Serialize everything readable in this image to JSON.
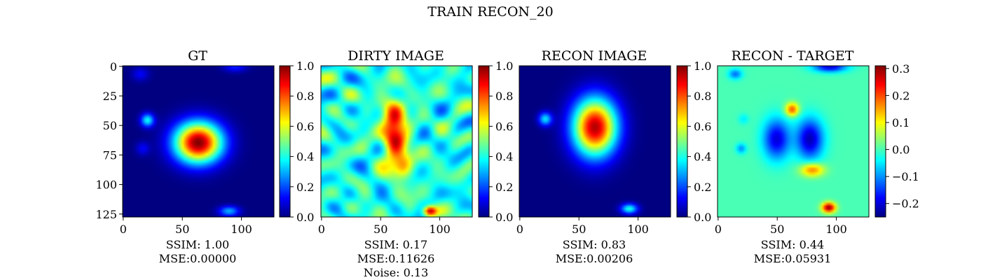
{
  "suptitle": "TRAIN RECON_20",
  "colormap": "jet",
  "chart_data": [
    {
      "type": "heatmap",
      "title": "GT",
      "image_size": [
        128,
        128
      ],
      "x_ticks": [
        0,
        50,
        100
      ],
      "y_ticks": [
        0,
        25,
        50,
        75,
        100,
        125
      ],
      "colorbar": {
        "range": [
          0.0,
          1.0
        ],
        "ticks": [
          "0.0",
          "0.2",
          "0.4",
          "0.6",
          "0.8",
          "1.0"
        ],
        "tick_values": [
          0.0,
          0.2,
          0.4,
          0.6,
          0.8,
          1.0
        ]
      },
      "caption": [
        "SSIM: 1.00",
        "MSE:0.00000"
      ],
      "blobs": [
        {
          "x": 64,
          "y": 65,
          "amp": 1.0,
          "sx": 14,
          "sy": 12
        },
        {
          "x": 21,
          "y": 46,
          "amp": 0.38,
          "sx": 4,
          "sy": 4
        },
        {
          "x": 90,
          "y": 123,
          "amp": 0.3,
          "sx": 6,
          "sy": 3
        },
        {
          "x": 15,
          "y": 7,
          "amp": 0.12,
          "sx": 5,
          "sy": 4
        },
        {
          "x": 95,
          "y": 1,
          "amp": 0.15,
          "sx": 7,
          "sy": 3
        },
        {
          "x": 17,
          "y": 70,
          "amp": 0.12,
          "sx": 4,
          "sy": 4
        }
      ],
      "noise": 0,
      "base": 0.0
    },
    {
      "type": "heatmap",
      "title": "DIRTY IMAGE",
      "image_size": [
        128,
        128
      ],
      "x_ticks": [
        0,
        50,
        100
      ],
      "y_ticks": [],
      "colorbar": {
        "range": [
          0.0,
          1.0
        ],
        "ticks": [
          "0.0",
          "0.2",
          "0.4",
          "0.6",
          "0.8",
          "1.0"
        ],
        "tick_values": [
          0.0,
          0.2,
          0.4,
          0.6,
          0.8,
          1.0
        ]
      },
      "caption": [
        "SSIM: 0.17",
        "MSE:0.11626",
        "Noise: 0.13"
      ],
      "blobs": [
        {
          "x": 62,
          "y": 55,
          "amp": 0.55,
          "sx": 7,
          "sy": 18
        },
        {
          "x": 70,
          "y": 85,
          "amp": 0.3,
          "sx": 6,
          "sy": 8
        },
        {
          "x": 92,
          "y": 123,
          "amp": 0.6,
          "sx": 4,
          "sy": 3
        }
      ],
      "noise": 0.6,
      "base": 0.4
    },
    {
      "type": "heatmap",
      "title": "RECON IMAGE",
      "image_size": [
        128,
        128
      ],
      "x_ticks": [
        0,
        50,
        100
      ],
      "y_ticks": [],
      "colorbar": {
        "range": [
          0.0,
          1.0
        ],
        "ticks": [
          "0.0",
          "0.2",
          "0.4",
          "0.6",
          "0.8",
          "1.0"
        ],
        "tick_values": [
          0.0,
          0.2,
          0.4,
          0.6,
          0.8,
          1.0
        ]
      },
      "caption": [
        "SSIM: 0.83",
        "MSE:0.00206"
      ],
      "blobs": [
        {
          "x": 64,
          "y": 52,
          "amp": 0.95,
          "sx": 13,
          "sy": 17
        },
        {
          "x": 22,
          "y": 45,
          "amp": 0.35,
          "sx": 4,
          "sy": 4
        },
        {
          "x": 93,
          "y": 121,
          "amp": 0.4,
          "sx": 5,
          "sy": 3
        }
      ],
      "noise": 0,
      "base": 0.0
    },
    {
      "type": "heatmap",
      "title": "RECON - TARGET",
      "image_size": [
        128,
        128
      ],
      "x_ticks": [
        0,
        50,
        100
      ],
      "y_ticks": [],
      "colorbar": {
        "range": [
          -0.25,
          0.31
        ],
        "ticks": [
          "−0.2",
          "−0.1",
          "0.0",
          "0.1",
          "0.2",
          "0.3"
        ],
        "tick_values": [
          -0.2,
          -0.1,
          0.0,
          0.1,
          0.2,
          0.3
        ]
      },
      "caption": [
        "SSIM: 0.44",
        "MSE:0.05931"
      ],
      "blobs": [
        {
          "x": 63,
          "y": 37,
          "amp": 0.2,
          "sx": 4,
          "sy": 4
        },
        {
          "x": 80,
          "y": 88,
          "amp": 0.18,
          "sx": 7,
          "sy": 4
        },
        {
          "x": 94,
          "y": 120,
          "amp": 0.3,
          "sx": 4,
          "sy": 3
        },
        {
          "x": 50,
          "y": 62,
          "amp": -0.2,
          "sx": 8,
          "sy": 12
        },
        {
          "x": 78,
          "y": 62,
          "amp": -0.22,
          "sx": 8,
          "sy": 12
        },
        {
          "x": 95,
          "y": 1,
          "amp": -0.2,
          "sx": 10,
          "sy": 3
        },
        {
          "x": 15,
          "y": 7,
          "amp": -0.12,
          "sx": 4,
          "sy": 3
        },
        {
          "x": 20,
          "y": 70,
          "amp": -0.1,
          "sx": 3,
          "sy": 3
        },
        {
          "x": 22,
          "y": 45,
          "amp": -0.05,
          "sx": 3,
          "sy": 3
        }
      ],
      "noise": 0,
      "base": 0.0
    }
  ]
}
